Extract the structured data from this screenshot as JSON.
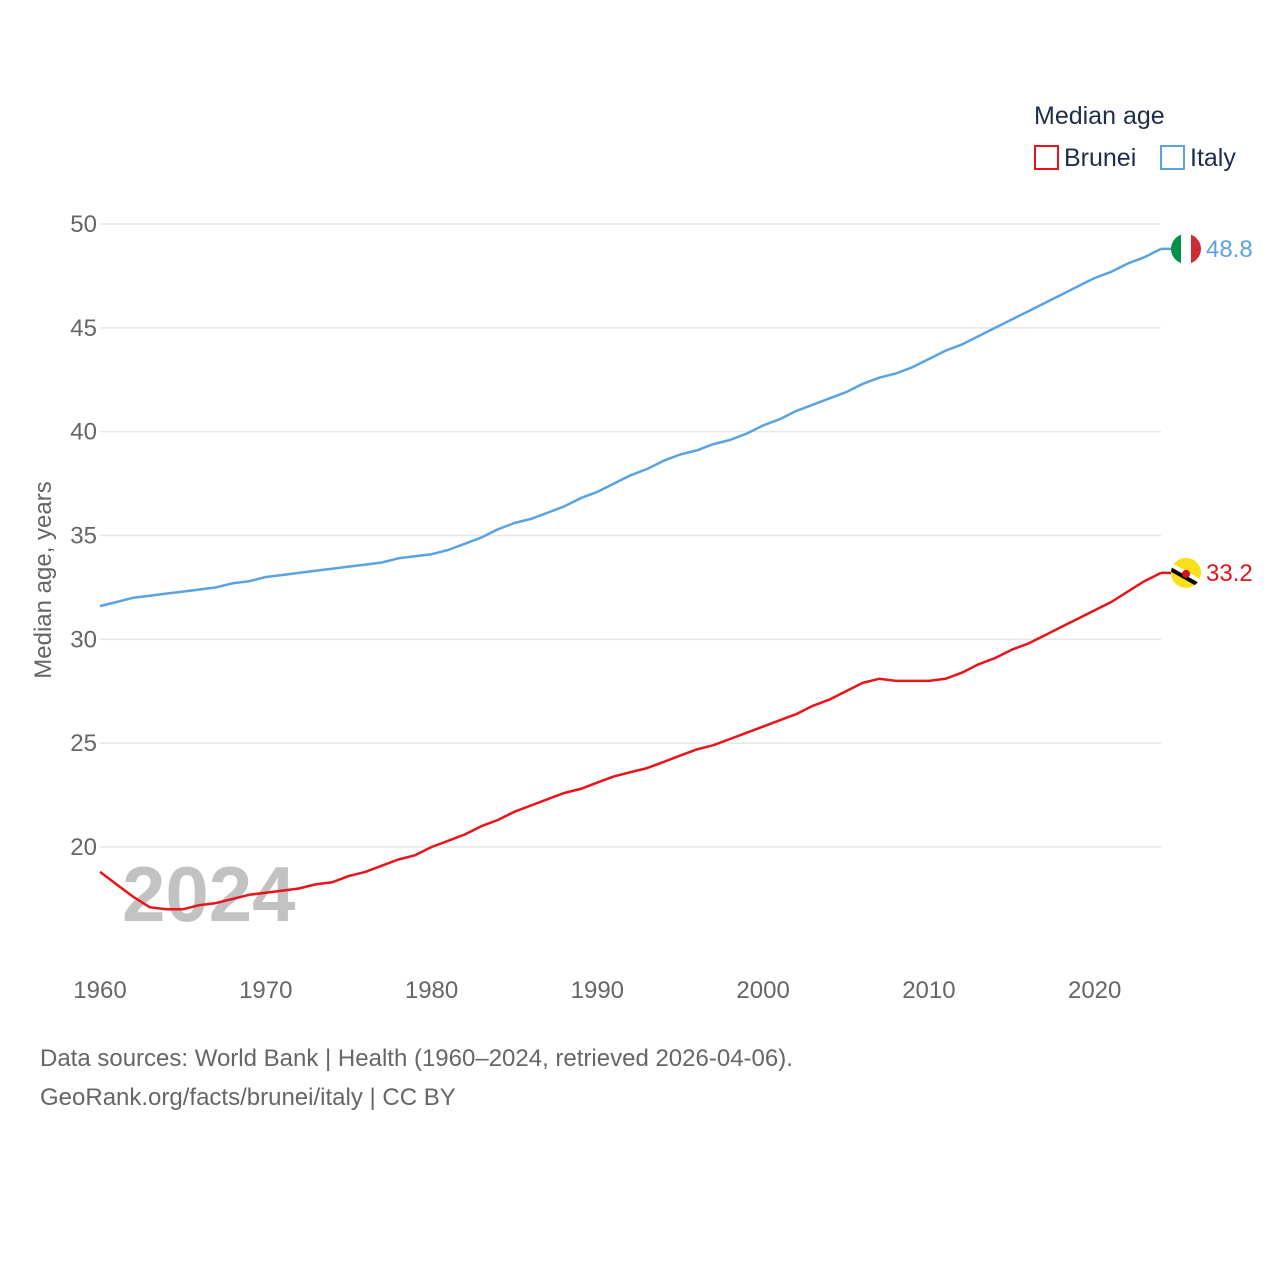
{
  "chart_data": {
    "type": "line",
    "title": "Median age",
    "ylabel": "Median age, years",
    "xlabel": "",
    "x": [
      1960,
      1961,
      1962,
      1963,
      1964,
      1965,
      1966,
      1967,
      1968,
      1969,
      1970,
      1971,
      1972,
      1973,
      1974,
      1975,
      1976,
      1977,
      1978,
      1979,
      1980,
      1981,
      1982,
      1983,
      1984,
      1985,
      1986,
      1987,
      1988,
      1989,
      1990,
      1991,
      1992,
      1993,
      1994,
      1995,
      1996,
      1997,
      1998,
      1999,
      2000,
      2001,
      2002,
      2003,
      2004,
      2005,
      2006,
      2007,
      2008,
      2009,
      2010,
      2011,
      2012,
      2013,
      2014,
      2015,
      2016,
      2017,
      2018,
      2019,
      2020,
      2021,
      2022,
      2023,
      2024
    ],
    "series": [
      {
        "name": "Brunei",
        "color": "#e8141b",
        "flag": "brunei-flag-icon",
        "end_label": "33.2",
        "values": [
          18.8,
          18.2,
          17.6,
          17.1,
          17.0,
          17.0,
          17.2,
          17.3,
          17.5,
          17.7,
          17.8,
          17.9,
          18.0,
          18.2,
          18.3,
          18.6,
          18.8,
          19.1,
          19.4,
          19.6,
          20.0,
          20.3,
          20.6,
          21.0,
          21.3,
          21.7,
          22.0,
          22.3,
          22.6,
          22.8,
          23.1,
          23.4,
          23.6,
          23.8,
          24.1,
          24.4,
          24.7,
          24.9,
          25.2,
          25.5,
          25.8,
          26.1,
          26.4,
          26.8,
          27.1,
          27.5,
          27.9,
          28.1,
          28.0,
          28.0,
          28.0,
          28.1,
          28.4,
          28.8,
          29.1,
          29.5,
          29.8,
          30.2,
          30.6,
          31.0,
          31.4,
          31.8,
          32.3,
          32.8,
          33.2
        ]
      },
      {
        "name": "Italy",
        "color": "#5ba3e0",
        "flag": "italy-flag-icon",
        "end_label": "48.8",
        "values": [
          31.6,
          31.8,
          32.0,
          32.1,
          32.2,
          32.3,
          32.4,
          32.5,
          32.7,
          32.8,
          33.0,
          33.1,
          33.2,
          33.3,
          33.4,
          33.5,
          33.6,
          33.7,
          33.9,
          34.0,
          34.1,
          34.3,
          34.6,
          34.9,
          35.3,
          35.6,
          35.8,
          36.1,
          36.4,
          36.8,
          37.1,
          37.5,
          37.9,
          38.2,
          38.6,
          38.9,
          39.1,
          39.4,
          39.6,
          39.9,
          40.3,
          40.6,
          41.0,
          41.3,
          41.6,
          41.9,
          42.3,
          42.6,
          42.8,
          43.1,
          43.5,
          43.9,
          44.2,
          44.6,
          45.0,
          45.4,
          45.8,
          46.2,
          46.6,
          47.0,
          47.4,
          47.7,
          48.1,
          48.4,
          48.8
        ]
      }
    ],
    "yticks": [
      20,
      25,
      30,
      35,
      40,
      45,
      50
    ],
    "xticks": [
      1960,
      1970,
      1980,
      1990,
      2000,
      2010,
      2020
    ],
    "ylim": [
      15.5,
      50
    ],
    "xlim": [
      1960,
      2024
    ],
    "grid": true,
    "legend_position": "top-right",
    "legend_title": "Median age",
    "current_year": "2024"
  },
  "footer": {
    "sources_line": "Data sources: World Bank | Health (1960–2024, retrieved 2026-04-06).",
    "link_line": "GeoRank.org/facts/brunei/italy | CC BY"
  }
}
